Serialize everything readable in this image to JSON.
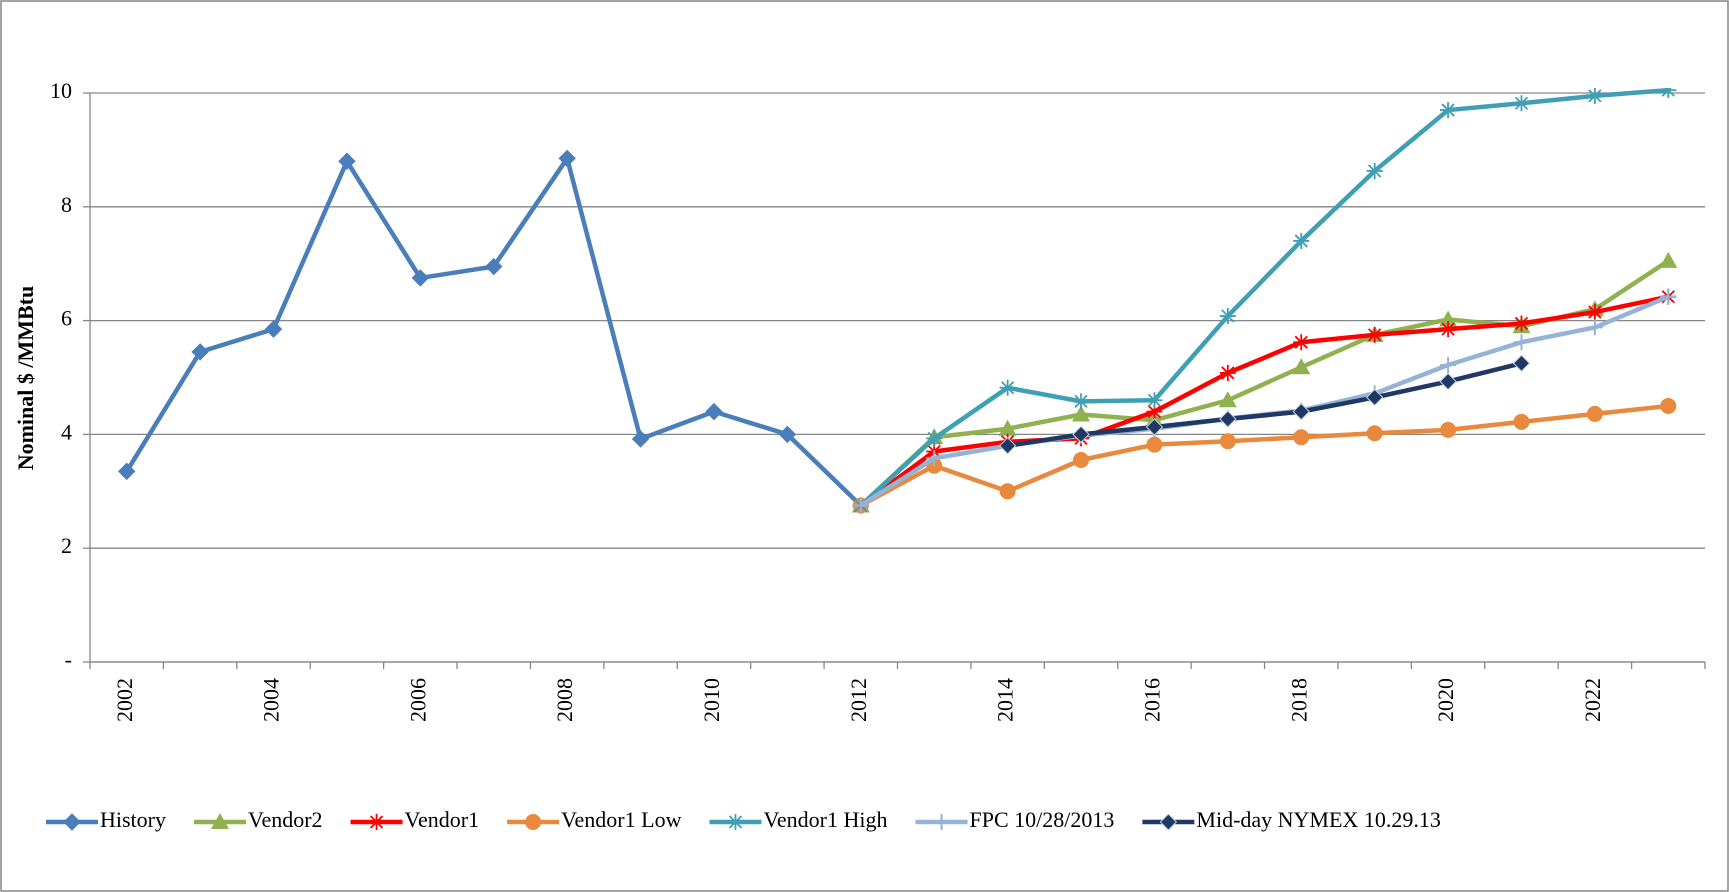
{
  "chart_data": {
    "type": "line",
    "y_label": "Nominal $ /MMBtu",
    "categories": [
      "2002",
      null,
      "2004",
      null,
      "2006",
      null,
      "2008",
      null,
      "2010",
      null,
      "2012",
      null,
      "2014",
      null,
      "2016",
      null,
      "2018",
      null,
      "2020",
      null,
      "2022",
      null
    ],
    "ylim": [
      0,
      10
    ],
    "yticks": [
      {
        "value": 0,
        "label": "-"
      },
      2,
      4,
      6,
      8,
      10
    ],
    "grid": true,
    "legend": "bottom",
    "series": [
      {
        "name": "History",
        "color": "#4a7ebb",
        "marker": "diamond",
        "values": [
          3.35,
          5.45,
          5.85,
          8.8,
          6.75,
          6.95,
          8.85,
          3.92,
          4.4,
          4.0,
          2.75,
          null,
          null,
          null,
          null,
          null,
          null,
          null,
          null,
          null,
          null,
          null
        ]
      },
      {
        "name": "Vendor2",
        "color": "#8fb150",
        "marker": "triangle",
        "values": [
          null,
          null,
          null,
          null,
          null,
          null,
          null,
          null,
          null,
          null,
          2.75,
          3.95,
          4.1,
          4.35,
          4.25,
          4.6,
          5.18,
          5.75,
          6.02,
          5.9,
          6.2,
          7.05
        ]
      },
      {
        "name": "Vendor1",
        "color": "#ff0000",
        "marker": "star",
        "values": [
          null,
          null,
          null,
          null,
          null,
          null,
          null,
          null,
          null,
          null,
          2.75,
          3.7,
          3.87,
          3.93,
          4.4,
          5.08,
          5.62,
          5.75,
          5.85,
          5.95,
          6.15,
          6.42
        ]
      },
      {
        "name": "Vendor1 Low",
        "color": "#e8893e",
        "marker": "circle",
        "values": [
          null,
          null,
          null,
          null,
          null,
          null,
          null,
          null,
          null,
          null,
          2.75,
          3.45,
          3.0,
          3.55,
          3.82,
          3.88,
          3.95,
          4.02,
          4.08,
          4.22,
          4.36,
          4.5
        ]
      },
      {
        "name": "Vendor1 High",
        "color": "#3e9fb5",
        "marker": "star",
        "values": [
          null,
          null,
          null,
          null,
          null,
          null,
          null,
          null,
          null,
          null,
          2.75,
          3.93,
          4.82,
          4.58,
          4.6,
          6.08,
          7.4,
          8.63,
          9.7,
          9.82,
          9.95,
          10.05
        ]
      },
      {
        "name": "FPC 10/28/2013",
        "color": "#95b3d7",
        "marker": "plus",
        "values": [
          null,
          null,
          null,
          null,
          null,
          null,
          null,
          null,
          null,
          null,
          2.75,
          3.58,
          3.8,
          3.98,
          4.1,
          4.28,
          4.42,
          4.72,
          5.22,
          5.62,
          5.88,
          6.42
        ]
      },
      {
        "name": "Mid-day NYMEX 10.29.13",
        "color": "#1f3864",
        "marker": "diamond",
        "values": [
          null,
          null,
          null,
          null,
          null,
          null,
          null,
          null,
          null,
          null,
          null,
          null,
          3.8,
          4.0,
          4.13,
          4.27,
          4.4,
          4.65,
          4.93,
          5.25,
          null,
          null
        ]
      }
    ]
  }
}
